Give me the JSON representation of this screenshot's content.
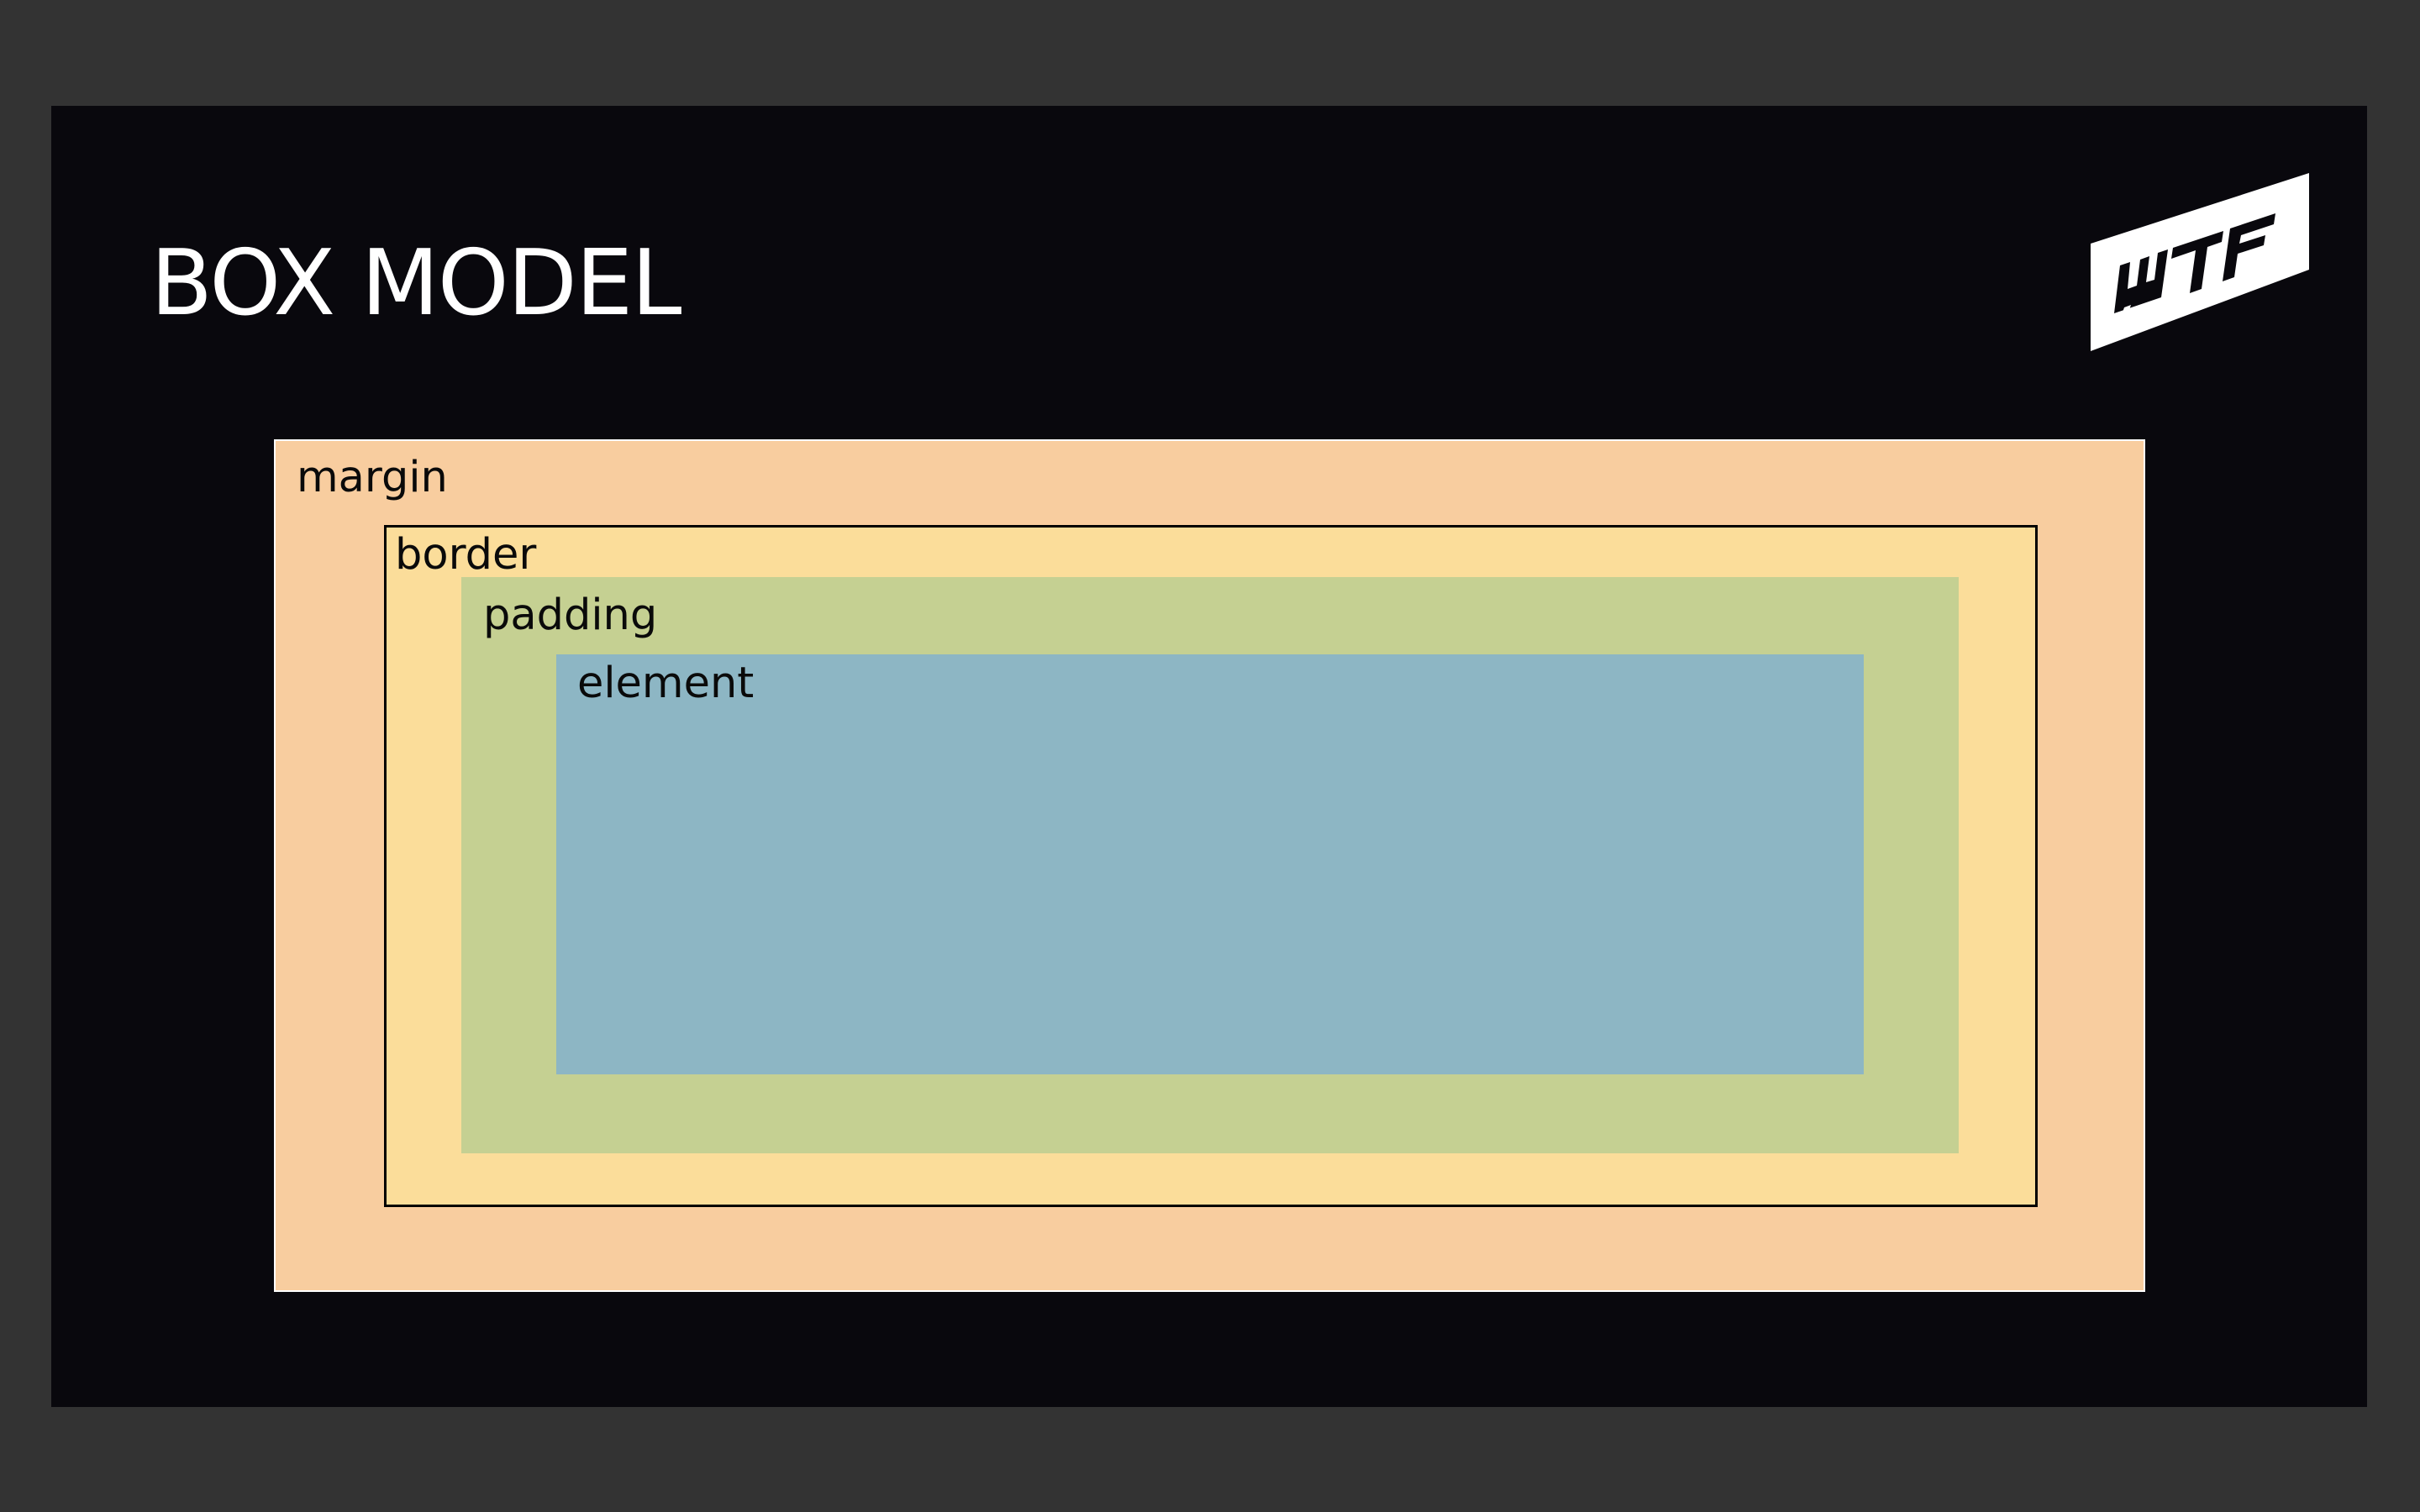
{
  "slide": {
    "title": "BOX MODEL",
    "logo_text": "WTF",
    "logo_icon": "wtf-logo-icon"
  },
  "diagram": {
    "layers": [
      {
        "label": "margin",
        "color": "#f8cd9f"
      },
      {
        "label": "border",
        "color": "#fbdd9a"
      },
      {
        "label": "padding",
        "color": "#c5d092"
      },
      {
        "label": "element",
        "color": "#8db6c4"
      }
    ]
  },
  "colors": {
    "page_background": "#333333",
    "slide_background": "#09080d",
    "title_text": "#ffffff",
    "label_text": "#0a0a0a"
  }
}
